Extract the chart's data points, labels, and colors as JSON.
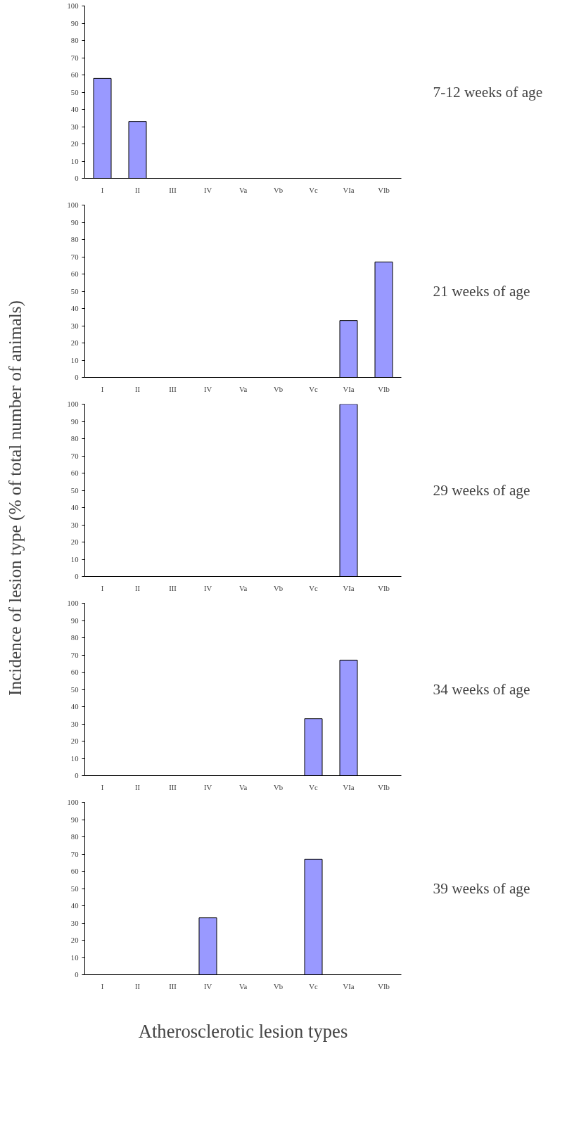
{
  "chart_data": [
    {
      "type": "bar",
      "annotations": [
        "7-12 weeks of age"
      ],
      "categories": [
        "I",
        "II",
        "III",
        "IV",
        "Va",
        "Vb",
        "Vc",
        "VIa",
        "VIb"
      ],
      "values": [
        58,
        33,
        null,
        null,
        null,
        null,
        null,
        null,
        null
      ],
      "color": "#9999ff",
      "ylim": [
        0,
        100
      ],
      "yticks": [
        0,
        10,
        20,
        30,
        40,
        50,
        60,
        70,
        80,
        90,
        100
      ]
    },
    {
      "type": "bar",
      "annotations": [
        "21 weeks of age"
      ],
      "categories": [
        "I",
        "II",
        "III",
        "IV",
        "Va",
        "Vb",
        "Vc",
        "VIa",
        "VIb"
      ],
      "values": [
        null,
        null,
        null,
        null,
        null,
        null,
        null,
        33,
        67
      ],
      "color": "#9999ff",
      "ylim": [
        0,
        100
      ],
      "yticks": [
        0,
        10,
        20,
        30,
        40,
        50,
        60,
        70,
        80,
        90,
        100
      ]
    },
    {
      "type": "bar",
      "annotations": [
        "29 weeks of age"
      ],
      "ylabel": "Incidence of lesion type (% of total number of animals)",
      "categories": [
        "I",
        "II",
        "III",
        "IV",
        "Va",
        "Vb",
        "Vc",
        "VIa",
        "VIb"
      ],
      "values": [
        null,
        null,
        null,
        null,
        null,
        null,
        null,
        100,
        null
      ],
      "color": "#9999ff",
      "ylim": [
        0,
        100
      ],
      "yticks": [
        0,
        10,
        20,
        30,
        40,
        50,
        60,
        70,
        80,
        90,
        100
      ]
    },
    {
      "type": "bar",
      "annotations": [
        "34 weeks of age"
      ],
      "categories": [
        "I",
        "II",
        "III",
        "IV",
        "Va",
        "Vb",
        "Vc",
        "VIa",
        "VIb"
      ],
      "values": [
        null,
        null,
        null,
        null,
        null,
        null,
        33,
        67,
        null
      ],
      "color": "#9999ff",
      "ylim": [
        0,
        100
      ],
      "yticks": [
        0,
        10,
        20,
        30,
        40,
        50,
        60,
        70,
        80,
        90,
        100
      ]
    },
    {
      "type": "bar",
      "annotations": [
        "39 weeks of age"
      ],
      "xlabel": "Atherosclerotic lesion types",
      "categories": [
        "I",
        "II",
        "III",
        "IV",
        "Va",
        "Vb",
        "Vc",
        "VIa",
        "VIb"
      ],
      "values": [
        null,
        null,
        null,
        33,
        null,
        null,
        67,
        null,
        null
      ],
      "color": "#9999ff",
      "ylim": [
        0,
        100
      ],
      "yticks": [
        0,
        10,
        20,
        30,
        40,
        50,
        60,
        70,
        80,
        90,
        100
      ]
    }
  ]
}
